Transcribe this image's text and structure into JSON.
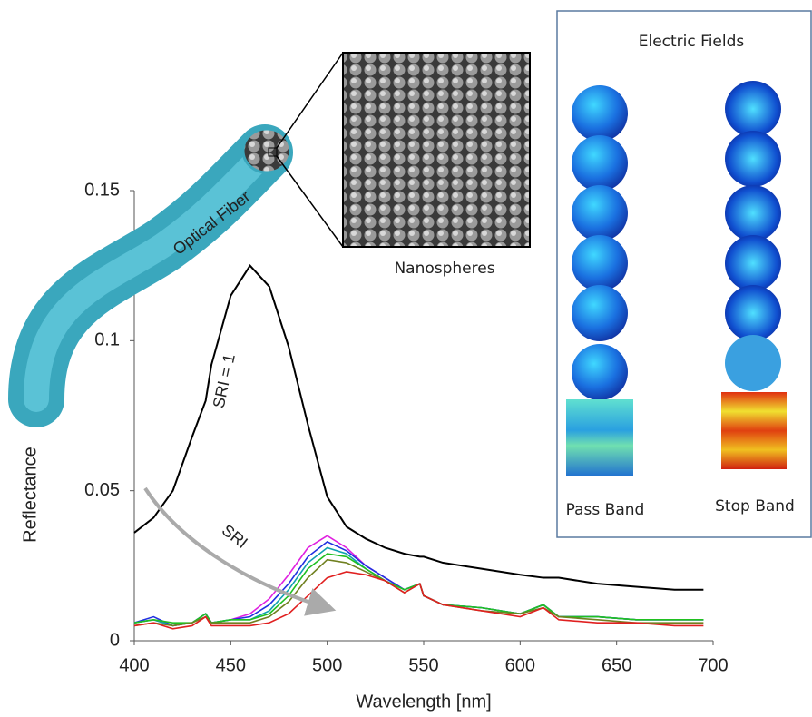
{
  "chart_data": {
    "type": "line",
    "x_label": "Wavelength [nm]",
    "y_label": "Reflectance",
    "xlim": [
      400,
      700
    ],
    "ylim": [
      0,
      0.15
    ],
    "xticks": [
      400,
      450,
      500,
      550,
      600,
      650,
      700
    ],
    "yticks": [
      0,
      0.05,
      0.1,
      0.15
    ],
    "x": [
      400,
      410,
      420,
      430,
      437,
      440,
      450,
      460,
      470,
      480,
      490,
      500,
      510,
      520,
      530,
      540,
      548,
      550,
      560,
      580,
      600,
      612,
      620,
      640,
      660,
      680,
      695
    ],
    "series": [
      {
        "color": "#000000",
        "values": [
          0.036,
          0.041,
          0.05,
          0.068,
          0.08,
          0.092,
          0.115,
          0.125,
          0.118,
          0.098,
          0.072,
          0.048,
          0.038,
          0.034,
          0.031,
          0.029,
          0.028,
          0.028,
          0.026,
          0.024,
          0.022,
          0.021,
          0.021,
          0.019,
          0.018,
          0.017,
          0.017
        ]
      },
      {
        "color": "#e020e0",
        "values": [
          0.006,
          0.007,
          0.005,
          0.006,
          0.009,
          0.006,
          0.007,
          0.009,
          0.014,
          0.022,
          0.031,
          0.035,
          0.031,
          0.025,
          0.021,
          0.017,
          0.019,
          0.015,
          0.012,
          0.011,
          0.009,
          0.012,
          0.008,
          0.008,
          0.007,
          0.007,
          0.007
        ]
      },
      {
        "color": "#2030e0",
        "values": [
          0.006,
          0.008,
          0.005,
          0.006,
          0.009,
          0.006,
          0.007,
          0.008,
          0.012,
          0.019,
          0.028,
          0.033,
          0.03,
          0.025,
          0.021,
          0.017,
          0.019,
          0.015,
          0.012,
          0.011,
          0.009,
          0.012,
          0.008,
          0.008,
          0.007,
          0.007,
          0.007
        ]
      },
      {
        "color": "#10a0b0",
        "values": [
          0.006,
          0.007,
          0.005,
          0.006,
          0.009,
          0.006,
          0.007,
          0.007,
          0.01,
          0.017,
          0.026,
          0.031,
          0.029,
          0.024,
          0.02,
          0.017,
          0.019,
          0.015,
          0.012,
          0.011,
          0.009,
          0.012,
          0.008,
          0.008,
          0.007,
          0.007,
          0.007
        ]
      },
      {
        "color": "#20c020",
        "values": [
          0.006,
          0.007,
          0.006,
          0.006,
          0.009,
          0.006,
          0.007,
          0.007,
          0.009,
          0.015,
          0.024,
          0.029,
          0.028,
          0.024,
          0.02,
          0.017,
          0.019,
          0.015,
          0.012,
          0.011,
          0.009,
          0.012,
          0.008,
          0.008,
          0.007,
          0.007,
          0.007
        ]
      },
      {
        "color": "#708020",
        "values": [
          0.005,
          0.006,
          0.005,
          0.006,
          0.008,
          0.006,
          0.006,
          0.006,
          0.008,
          0.013,
          0.021,
          0.027,
          0.026,
          0.023,
          0.02,
          0.016,
          0.019,
          0.015,
          0.012,
          0.01,
          0.009,
          0.011,
          0.008,
          0.007,
          0.006,
          0.006,
          0.006
        ]
      },
      {
        "color": "#e02020",
        "values": [
          0.005,
          0.006,
          0.004,
          0.005,
          0.008,
          0.005,
          0.005,
          0.005,
          0.006,
          0.009,
          0.015,
          0.021,
          0.023,
          0.022,
          0.02,
          0.016,
          0.019,
          0.015,
          0.012,
          0.01,
          0.008,
          0.011,
          0.007,
          0.006,
          0.006,
          0.005,
          0.005
        ]
      }
    ],
    "annotations": [
      "SRI = 1",
      "SRI",
      "Optical Fiber",
      "Nanospheres",
      "Electric Fields",
      "Pass Band",
      "Stop Band"
    ]
  }
}
